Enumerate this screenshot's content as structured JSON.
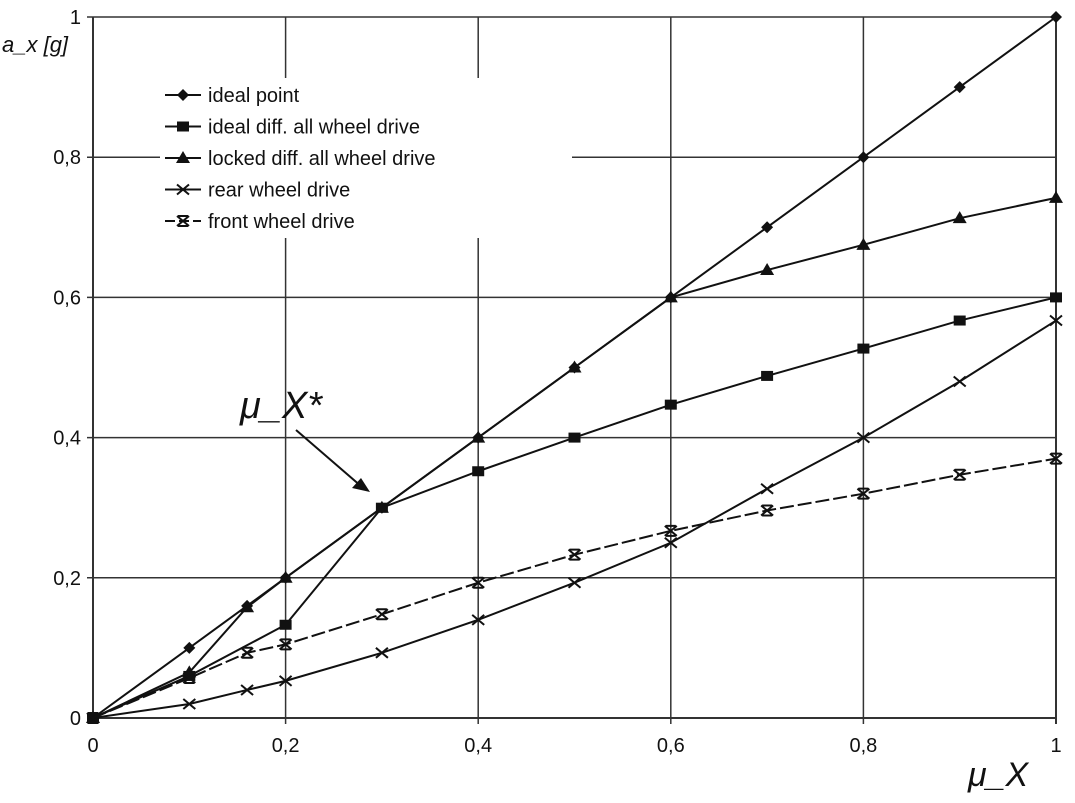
{
  "chart_data": {
    "type": "line",
    "title": "",
    "xlabel": "μ_X",
    "ylabel": "a_x [g]",
    "xlim": [
      0,
      1
    ],
    "ylim": [
      0,
      1
    ],
    "grid": true,
    "legend_placement": "top-left",
    "x_ticks": [
      "0",
      "0,2",
      "0,4",
      "0,6",
      "0,8",
      "1"
    ],
    "y_ticks": [
      "0",
      "0,2",
      "0,4",
      "0,6",
      "0,8",
      "1"
    ],
    "annotation": {
      "text": "μ_X*",
      "points_to": [
        0.3,
        0.3
      ]
    },
    "series": [
      {
        "name": "ideal point",
        "marker": "diamond",
        "dash": false,
        "x": [
          0,
          0.1,
          0.16,
          0.2,
          0.3,
          0.4,
          0.5,
          0.6,
          0.7,
          0.8,
          0.9,
          1
        ],
        "y": [
          0,
          0.1,
          0.16,
          0.2,
          0.3,
          0.4,
          0.5,
          0.6,
          0.7,
          0.8,
          0.9,
          1
        ]
      },
      {
        "name": "ideal diff. all wheel drive",
        "marker": "square",
        "dash": false,
        "x": [
          0,
          0.1,
          0.2,
          0.3,
          0.4,
          0.5,
          0.6,
          0.7,
          0.8,
          0.9,
          1
        ],
        "y": [
          0,
          0.06,
          0.133,
          0.3,
          0.352,
          0.4,
          0.447,
          0.488,
          0.527,
          0.567,
          0.6
        ]
      },
      {
        "name": "locked diff. all wheel drive",
        "marker": "triangle",
        "dash": false,
        "x": [
          0,
          0.1,
          0.16,
          0.2,
          0.3,
          0.4,
          0.5,
          0.6,
          0.7,
          0.8,
          0.9,
          1
        ],
        "y": [
          0,
          0.065,
          0.158,
          0.2,
          0.3,
          0.4,
          0.5,
          0.6,
          0.639,
          0.675,
          0.713,
          0.742
        ]
      },
      {
        "name": "rear wheel drive",
        "marker": "x",
        "dash": false,
        "x": [
          0,
          0.1,
          0.16,
          0.2,
          0.3,
          0.4,
          0.5,
          0.6,
          0.7,
          0.8,
          0.9,
          1
        ],
        "y": [
          0,
          0.02,
          0.04,
          0.053,
          0.093,
          0.14,
          0.193,
          0.25,
          0.327,
          0.4,
          0.48,
          0.567
        ]
      },
      {
        "name": "front wheel drive",
        "marker": "xbar",
        "dash": true,
        "x": [
          0,
          0.1,
          0.16,
          0.2,
          0.3,
          0.4,
          0.5,
          0.6,
          0.7,
          0.8,
          0.9,
          1
        ],
        "y": [
          0,
          0.057,
          0.093,
          0.105,
          0.148,
          0.193,
          0.233,
          0.267,
          0.296,
          0.32,
          0.347,
          0.37
        ]
      }
    ]
  }
}
